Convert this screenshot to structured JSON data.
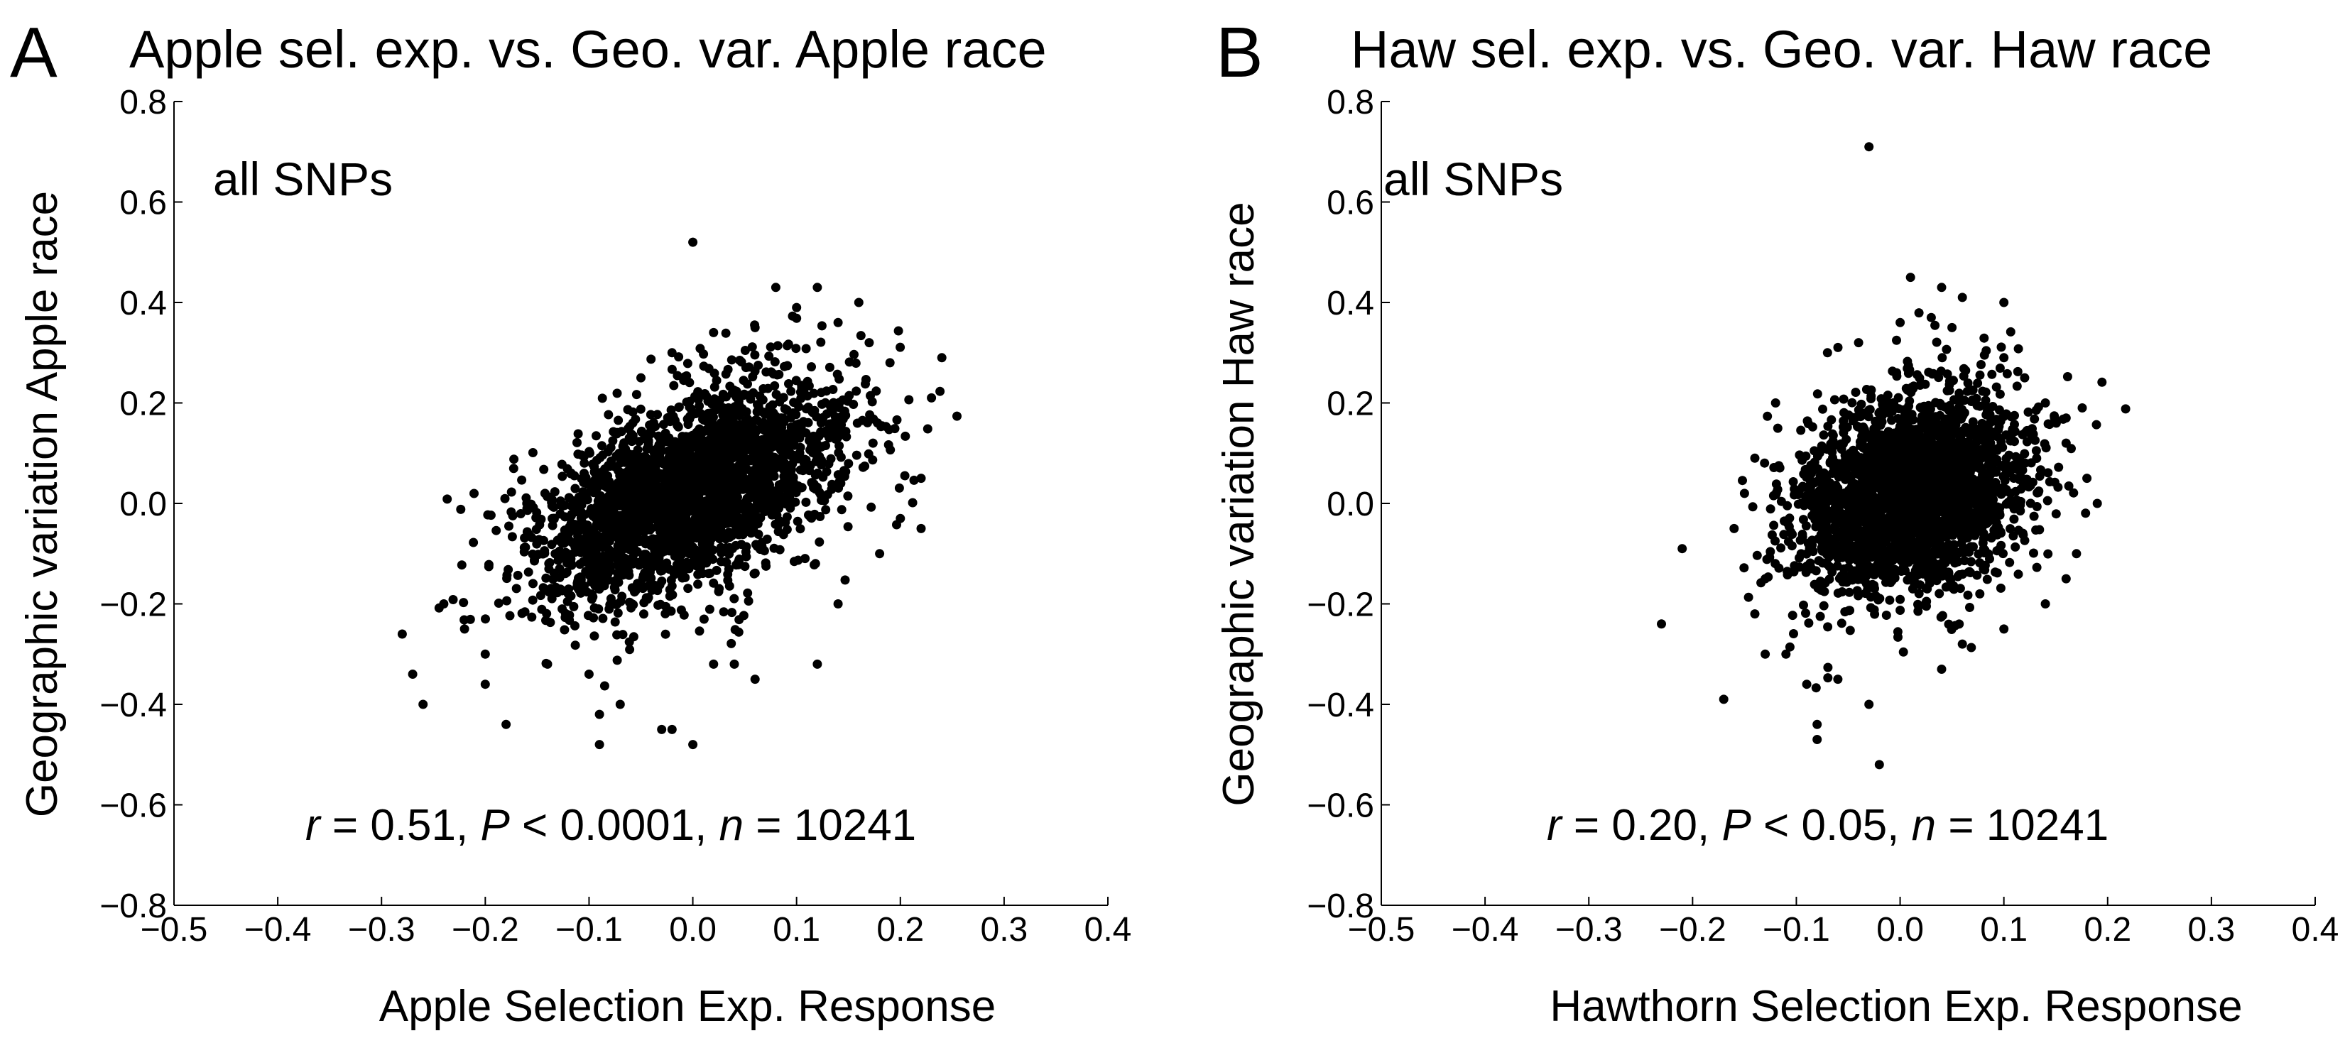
{
  "figure": {
    "panels": [
      {
        "letter": "A",
        "title": "Apple sel. exp. vs. Geo. var. Apple race",
        "note": "all SNPs",
        "stats": {
          "r": "0.51",
          "p": "0.0001",
          "p_op": "<",
          "n": "10241"
        },
        "xlabel": "Apple Selection Exp. Response",
        "ylabel": "Geographic variation Apple race"
      },
      {
        "letter": "B",
        "title": "Haw sel. exp. vs. Geo. var. Haw race",
        "note": "all SNPs",
        "stats": {
          "r": "0.20",
          "p": "0.05",
          "p_op": "<",
          "n": "10241"
        },
        "xlabel": "Hawthorn Selection Exp. Response",
        "ylabel": "Geographic variation Haw race"
      }
    ]
  },
  "chart_data": [
    {
      "type": "scatter",
      "title": "Apple sel. exp. vs. Geo. var. Apple race",
      "xlabel": "Apple Selection Exp. Response",
      "ylabel": "Geographic variation Apple race",
      "xlim": [
        -0.5,
        0.4
      ],
      "ylim": [
        -0.8,
        0.8
      ],
      "xticks": [
        "−0.5",
        "−0.4",
        "−0.3",
        "−0.2",
        "−0.1",
        "0.0",
        "0.1",
        "0.2",
        "0.3",
        "0.4"
      ],
      "yticks": [
        "−0.8",
        "−0.6",
        "−0.4",
        "−0.2",
        "0.0",
        "0.2",
        "0.4",
        "0.6",
        "0.8"
      ],
      "grid": false,
      "annotation": "all SNPs",
      "n": 10241,
      "r": 0.51,
      "points": [
        [
          0.0,
          0.52
        ],
        [
          -0.09,
          -0.48
        ],
        [
          -0.09,
          -0.42
        ],
        [
          -0.07,
          -0.4
        ],
        [
          -0.03,
          -0.45
        ],
        [
          -0.02,
          -0.45
        ],
        [
          0.0,
          -0.48
        ],
        [
          -0.18,
          -0.44
        ],
        [
          -0.2,
          -0.36
        ],
        [
          -0.26,
          -0.4
        ],
        [
          -0.27,
          -0.34
        ],
        [
          -0.28,
          -0.26
        ],
        [
          0.02,
          -0.32
        ],
        [
          0.04,
          -0.32
        ],
        [
          0.06,
          -0.35
        ],
        [
          0.12,
          -0.32
        ],
        [
          0.06,
          0.35
        ],
        [
          0.1,
          0.39
        ],
        [
          0.12,
          0.43
        ],
        [
          0.08,
          0.43
        ],
        [
          0.16,
          0.4
        ],
        [
          0.22,
          0.05
        ],
        [
          0.23,
          0.21
        ],
        [
          0.24,
          0.29
        ],
        [
          0.22,
          -0.05
        ],
        [
          0.2,
          -0.03
        ],
        [
          -0.24,
          -0.2
        ],
        [
          -0.22,
          -0.25
        ],
        [
          -0.2,
          -0.3
        ],
        [
          0.19,
          0.28
        ],
        [
          0.17,
          0.32
        ],
        [
          0.14,
          0.36
        ],
        [
          0.02,
          0.34
        ],
        [
          -0.02,
          0.3
        ],
        [
          -0.05,
          0.25
        ],
        [
          0.18,
          -0.1
        ],
        [
          0.14,
          -0.2
        ],
        [
          -0.14,
          -0.32
        ],
        [
          -0.1,
          -0.34
        ],
        [
          -0.16,
          0.0
        ]
      ]
    },
    {
      "type": "scatter",
      "title": "Haw sel. exp. vs. Geo. var. Haw race",
      "xlabel": "Hawthorn Selection Exp. Response",
      "ylabel": "Geographic variation Haw race",
      "xlim": [
        -0.5,
        0.4
      ],
      "ylim": [
        -0.8,
        0.8
      ],
      "xticks": [
        "−0.5",
        "−0.4",
        "−0.3",
        "−0.2",
        "−0.1",
        "0.0",
        "0.1",
        "0.2",
        "0.3",
        "0.4"
      ],
      "yticks": [
        "−0.8",
        "−0.6",
        "−0.4",
        "−0.2",
        "0.0",
        "0.2",
        "0.4",
        "0.6",
        "0.8"
      ],
      "grid": false,
      "annotation": "all SNPs",
      "n": 10241,
      "r": 0.2,
      "points": [
        [
          -0.03,
          0.71
        ],
        [
          -0.23,
          -0.24
        ],
        [
          -0.21,
          -0.09
        ],
        [
          -0.17,
          -0.39
        ],
        [
          -0.08,
          -0.47
        ],
        [
          -0.08,
          -0.44
        ],
        [
          -0.02,
          -0.52
        ],
        [
          0.01,
          0.45
        ],
        [
          0.04,
          0.43
        ],
        [
          0.06,
          0.41
        ],
        [
          0.1,
          0.4
        ],
        [
          0.19,
          0.0
        ],
        [
          0.17,
          -0.1
        ],
        [
          0.16,
          -0.15
        ],
        [
          0.18,
          0.05
        ],
        [
          0.16,
          0.12
        ],
        [
          0.16,
          0.17
        ],
        [
          0.14,
          0.2
        ],
        [
          -0.14,
          -0.22
        ],
        [
          -0.13,
          -0.3
        ],
        [
          -0.11,
          -0.3
        ],
        [
          -0.09,
          -0.36
        ],
        [
          -0.06,
          -0.35
        ],
        [
          -0.03,
          -0.4
        ],
        [
          0.04,
          -0.33
        ],
        [
          0.06,
          -0.28
        ],
        [
          0.1,
          -0.25
        ],
        [
          -0.16,
          -0.05
        ],
        [
          -0.15,
          0.02
        ],
        [
          -0.14,
          0.09
        ],
        [
          -0.12,
          0.2
        ],
        [
          -0.07,
          0.3
        ],
        [
          -0.04,
          0.32
        ],
        [
          0.0,
          0.36
        ],
        [
          0.03,
          0.37
        ],
        [
          0.05,
          0.35
        ],
        [
          0.12,
          0.25
        ],
        [
          0.1,
          0.29
        ],
        [
          -0.13,
          -0.15
        ],
        [
          0.14,
          -0.2
        ]
      ]
    }
  ]
}
